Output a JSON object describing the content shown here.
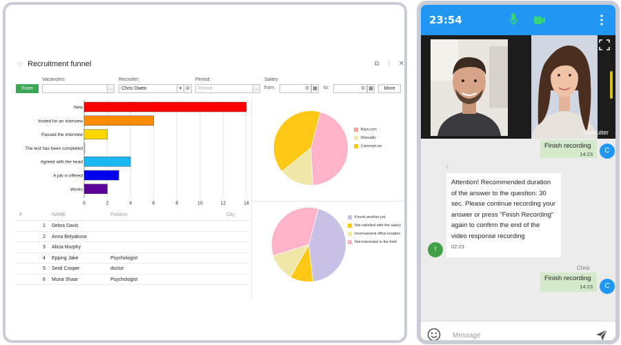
{
  "crm": {
    "title": "Recruitment funnel",
    "filters": {
      "vacancies_label": "Vacancies:",
      "recruiter_label": "Recruiter:",
      "recruiter_value": "Chris Owen",
      "period_label": "Period:",
      "period_placeholder": "Period",
      "salary_label": "Salary",
      "from_label": "from:",
      "from_value": "0",
      "to_label": "to:",
      "to_value": "0",
      "form_label": "Form",
      "more_label": "More"
    },
    "table": {
      "headers": [
        "#",
        "NAME",
        "Position",
        "City"
      ],
      "rows": [
        {
          "n": "1",
          "name": "Debra  Davis",
          "position": ""
        },
        {
          "n": "2",
          "name": "Anna Belyakova",
          "position": ""
        },
        {
          "n": "3",
          "name": "Alicia Murphy",
          "position": ""
        },
        {
          "n": "4",
          "name": "Epping Jake",
          "position": "Psychologist"
        },
        {
          "n": "5",
          "name": "Seidi Cooper",
          "position": "doctor"
        },
        {
          "n": "6",
          "name": "Muna  Shaar",
          "position": "Psychologist"
        }
      ]
    }
  },
  "chart_data": [
    {
      "type": "bar",
      "orientation": "horizontal",
      "categories": [
        "New",
        "Invited for an interview",
        "Passed the interview",
        "The test has been completed",
        "Agreed with the head",
        "A job is offered",
        "Works"
      ],
      "values": [
        14,
        6,
        2,
        0,
        4,
        3,
        2
      ],
      "colors": [
        "#ff0000",
        "#ff8c00",
        "#ffd700",
        "#ffffff",
        "#1ab7f0",
        "#0000ee",
        "#5b0099"
      ],
      "xlim": [
        0,
        14
      ],
      "xticks": [
        "0",
        "2",
        "4",
        "6",
        "8",
        "10",
        "12",
        "14"
      ],
      "grid": true
    },
    {
      "type": "pie",
      "labels": [
        "Bayt.com",
        "Manually",
        "Careerjet.ae"
      ],
      "values": [
        45,
        15,
        40
      ],
      "colors": [
        "#ffb3c8",
        "#efe6a8",
        "#ffc817"
      ],
      "legend_colors": [
        "#f5a89a",
        "#efe6a8",
        "#ffc817"
      ],
      "legend": "right"
    },
    {
      "type": "pie",
      "labels": [
        "Found another job",
        "Not satisfied with the salary",
        "Inconvenient office location",
        "Not interested in the field"
      ],
      "values": [
        44,
        10,
        12,
        34
      ],
      "colors": [
        "#c9c0e6",
        "#ffc817",
        "#efe6a8",
        "#ffb3c8"
      ],
      "legend": "right"
    }
  ],
  "phone": {
    "time": "23:54",
    "video_label": "Recruiter",
    "messages": {
      "out1_text": "Finish recording",
      "out1_time": "14:23",
      "out1_avatar": "C",
      "in_marker": "!",
      "in_text": "Attention! Recommended duration of the answer to the question: 30 sec. Please continue recording your answer or press \"Finish Recording\" again to confirm the end of the video response recording",
      "in_time": "02:23",
      "in_avatar": "!",
      "out2_sender": "Chris",
      "out2_text": "Finish recording",
      "out2_time": "14:23",
      "out2_avatar": "C"
    },
    "input_placeholder": "Message"
  },
  "colors": {
    "accent_blue": "#2196f3",
    "form_green": "#3aa757",
    "out_bubble": "#d3e9c9",
    "in_avatar": "#43a047"
  },
  "icons": [
    "star-icon",
    "external-link-icon",
    "kebab-icon",
    "close-icon",
    "microphone-icon",
    "video-camera-icon",
    "fullscreen-icon",
    "emoji-icon",
    "send-icon"
  ]
}
